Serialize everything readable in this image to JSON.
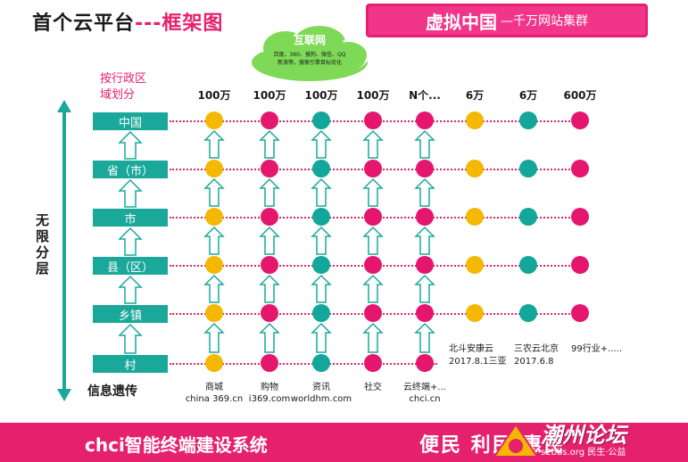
{
  "title": {
    "main": "首个云平台",
    "dashes": "---",
    "suffix": "框架图"
  },
  "banner": {
    "big": "虚拟中国",
    "small": "—千万网站集群"
  },
  "cloud": {
    "title": "互联网",
    "line1": "百度、360、搜狗、微信、QQ",
    "line2": "新浪等，搜索引擎目标优化"
  },
  "admin_label": {
    "line1": "按行政区",
    "line2": "域划分"
  },
  "side_label": "无限分层",
  "info_label": "信息遗传",
  "levels": [
    "中国",
    "省（市）",
    "市",
    "县（区）",
    "乡镇",
    "村"
  ],
  "columns": [
    {
      "head": "100万",
      "color": "#f5b800",
      "foot1": "商城",
      "foot2": "china 369.cn",
      "rows": 6
    },
    {
      "head": "100万",
      "color": "#e5166e",
      "foot1": "购物",
      "foot2": "i369.com",
      "rows": 6
    },
    {
      "head": "100万",
      "color": "#12a79a",
      "foot1": "资讯",
      "foot2": "worldhm.com",
      "rows": 6
    },
    {
      "head": "100万",
      "color": "#e5166e",
      "foot1": "社交",
      "foot2": "",
      "rows": 6
    },
    {
      "head": "N个...",
      "color": "#e5166e",
      "foot1": "云终端+...",
      "foot2": "chci.cn",
      "rows": 6
    },
    {
      "head": "6万",
      "color": "#f5b800",
      "foot1": "",
      "foot2": "",
      "rows": 5
    },
    {
      "head": "6万",
      "color": "#12a79a",
      "foot1": "",
      "foot2": "",
      "rows": 5
    },
    {
      "head": "600万",
      "color": "#e5166e",
      "foot1": "",
      "foot2": "",
      "rows": 5
    }
  ],
  "projects": [
    {
      "line1": "北斗安康云",
      "line2": "2017.8.1三亚"
    },
    {
      "line1": "三农云北京",
      "line2": "2017.6.8"
    },
    {
      "line1": "99行业+.....",
      "line2": ""
    }
  ],
  "footer": {
    "left": "chci智能终端建设系统",
    "right": "便民  利民  惠民"
  },
  "watermark": {
    "text": "潮州论坛",
    "sub": "s2bbs.org 民生·公益"
  },
  "colors": {
    "pink": "#e5216d",
    "teal": "#1aa89a",
    "yellow": "#f5b800"
  }
}
